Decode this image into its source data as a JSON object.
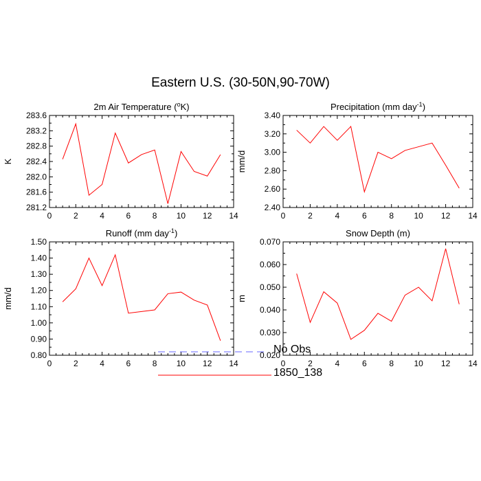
{
  "figure": {
    "title": "Eastern U.S. (30-50N,90-70W)",
    "background": "#ffffff"
  },
  "legend": {
    "items": [
      {
        "label": "No Obs",
        "color": "#6666ff",
        "style": "dashed"
      },
      {
        "label": "1850_138",
        "color": "#ff0000",
        "style": "solid"
      }
    ]
  },
  "chart_data": [
    {
      "type": "line",
      "title": "2m Air Temperature (",
      "title_sup": "o",
      "title_tail": "K)",
      "ylabel": "K",
      "xlim": [
        0,
        14
      ],
      "ylim": [
        281.2,
        283.6
      ],
      "xticks": [
        "0",
        "2",
        "4",
        "6",
        "8",
        "10",
        "12",
        "14"
      ],
      "yticks": [
        "281.2",
        "281.6",
        "282.0",
        "282.4",
        "282.8",
        "283.2",
        "283.6"
      ],
      "x": [
        1,
        2,
        3,
        4,
        5,
        6,
        7,
        8,
        9,
        10,
        11,
        12,
        13
      ],
      "series": [
        {
          "values": [
            282.46,
            283.38,
            281.52,
            281.8,
            283.14,
            282.36,
            282.58,
            282.7,
            281.3,
            282.66,
            282.14,
            282.02,
            282.58
          ],
          "color": "#ff0000"
        }
      ]
    },
    {
      "type": "line",
      "title": "Precipitation (mm day",
      "title_sup": "-1",
      "title_tail": ")",
      "ylabel": "mm/d",
      "xlim": [
        0,
        14
      ],
      "ylim": [
        2.4,
        3.4
      ],
      "xticks": [
        "0",
        "2",
        "4",
        "6",
        "8",
        "10",
        "12",
        "14"
      ],
      "yticks": [
        "2.40",
        "2.60",
        "2.80",
        "3.00",
        "3.20",
        "3.40"
      ],
      "x": [
        1,
        2,
        3,
        4,
        5,
        6,
        7,
        8,
        9,
        10,
        11,
        12,
        13
      ],
      "series": [
        {
          "values": [
            3.24,
            3.1,
            3.28,
            3.13,
            3.28,
            2.57,
            3.0,
            2.93,
            3.02,
            3.06,
            3.1,
            2.86,
            2.61
          ],
          "color": "#ff0000"
        }
      ]
    },
    {
      "type": "line",
      "title": "Runoff (mm day",
      "title_sup": "-1",
      "title_tail": ")",
      "ylabel": "mm/d",
      "xlim": [
        0,
        14
      ],
      "ylim": [
        0.8,
        1.5
      ],
      "xticks": [
        "0",
        "2",
        "4",
        "6",
        "8",
        "10",
        "12",
        "14"
      ],
      "yticks": [
        "0.80",
        "0.90",
        "1.00",
        "1.10",
        "1.20",
        "1.30",
        "1.40",
        "1.50"
      ],
      "x": [
        1,
        2,
        3,
        4,
        5,
        6,
        7,
        8,
        9,
        10,
        11,
        12,
        13
      ],
      "series": [
        {
          "values": [
            1.13,
            1.21,
            1.4,
            1.23,
            1.42,
            1.06,
            1.07,
            1.08,
            1.18,
            1.19,
            1.14,
            1.11,
            0.89
          ],
          "color": "#ff0000"
        }
      ]
    },
    {
      "type": "line",
      "title": "Snow Depth (m)",
      "title_sup": "",
      "title_tail": "",
      "ylabel": "m",
      "xlim": [
        0,
        14
      ],
      "ylim": [
        0.02,
        0.07
      ],
      "xticks": [
        "0",
        "2",
        "4",
        "6",
        "8",
        "10",
        "12",
        "14"
      ],
      "yticks": [
        "0.020",
        "0.030",
        "0.040",
        "0.050",
        "0.060",
        "0.070"
      ],
      "x": [
        1,
        2,
        3,
        4,
        5,
        6,
        7,
        8,
        9,
        10,
        11,
        12,
        13
      ],
      "series": [
        {
          "values": [
            0.056,
            0.0345,
            0.048,
            0.043,
            0.027,
            0.031,
            0.0385,
            0.035,
            0.0465,
            0.05,
            0.044,
            0.067,
            0.0425
          ],
          "color": "#ff0000"
        }
      ]
    }
  ]
}
